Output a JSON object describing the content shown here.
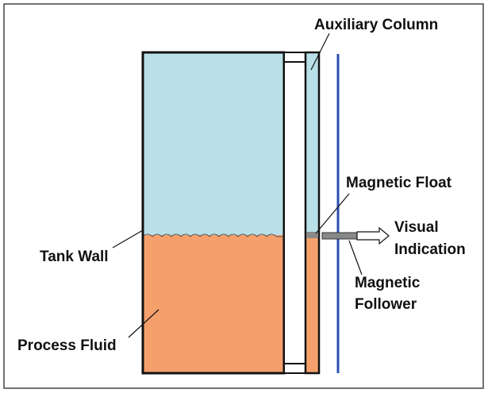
{
  "labels": {
    "auxiliary_column": "Auxiliary Column",
    "magnetic_float": "Magnetic Float",
    "visual": "Visual",
    "indication": "Indication",
    "magnetic": "Magnetic",
    "follower": "Follower",
    "tank_wall": "Tank Wall",
    "process_fluid": "Process Fluid"
  }
}
